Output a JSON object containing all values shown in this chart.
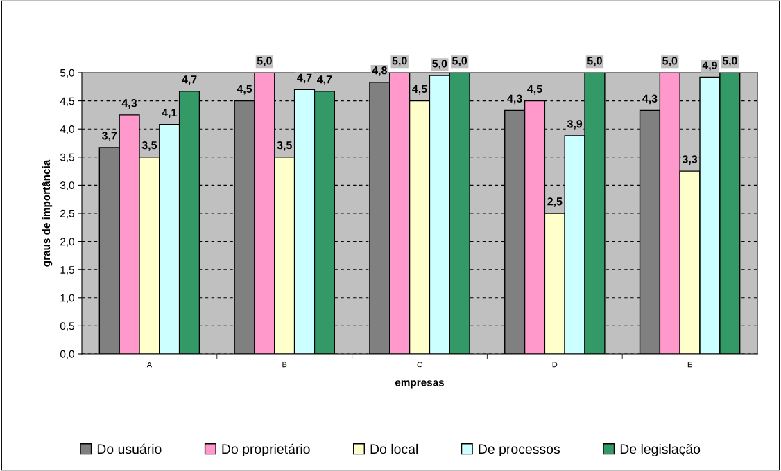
{
  "chart_data": {
    "type": "bar",
    "xlabel": "empresas",
    "ylabel": "graus de importância",
    "categories": [
      "A",
      "B",
      "C",
      "D",
      "E"
    ],
    "series": [
      {
        "name": "Do usuário",
        "color": "#808080",
        "values": [
          3.67,
          4.5,
          4.83,
          4.33,
          4.33
        ],
        "value_labels": [
          "3,7",
          "4,5",
          "4,8",
          "4,3",
          "4,3"
        ]
      },
      {
        "name": "Do proprietário",
        "color": "#ff99cc",
        "values": [
          4.25,
          5.0,
          5.0,
          4.5,
          5.0
        ],
        "value_labels": [
          "4,3",
          "5,0",
          "5,0",
          "4,5",
          "5,0"
        ]
      },
      {
        "name": "Do local",
        "color": "#ffffcc",
        "values": [
          3.5,
          3.5,
          4.5,
          2.5,
          3.25
        ],
        "value_labels": [
          "3,5",
          "3,5",
          "4,5",
          "2,5",
          "3,3"
        ]
      },
      {
        "name": "De processos",
        "color": "#ccffff",
        "values": [
          4.08,
          4.7,
          4.95,
          3.88,
          4.92
        ],
        "value_labels": [
          "4,1",
          "4,7",
          "5,0",
          "3,9",
          "4,9"
        ]
      },
      {
        "name": "De legislação",
        "color": "#339966",
        "values": [
          4.67,
          4.67,
          5.0,
          5.0,
          5.0
        ],
        "value_labels": [
          "4,7",
          "4,7",
          "5,0",
          "5,0",
          "5,0"
        ]
      }
    ],
    "ylim": [
      0,
      5
    ],
    "yticks": [
      {
        "value": 0,
        "label": "0,0"
      },
      {
        "value": 0.5,
        "label": "0,5"
      },
      {
        "value": 1,
        "label": "1,0"
      },
      {
        "value": 1.5,
        "label": "1,5"
      },
      {
        "value": 2,
        "label": "2,0"
      },
      {
        "value": 2.5,
        "label": "2,5"
      },
      {
        "value": 3,
        "label": "3,0"
      },
      {
        "value": 3.5,
        "label": "3,5"
      },
      {
        "value": 4,
        "label": "4,0"
      },
      {
        "value": 4.5,
        "label": "4,5"
      },
      {
        "value": 5,
        "label": "5,0"
      }
    ],
    "grid": "y",
    "legend": "bottom"
  }
}
